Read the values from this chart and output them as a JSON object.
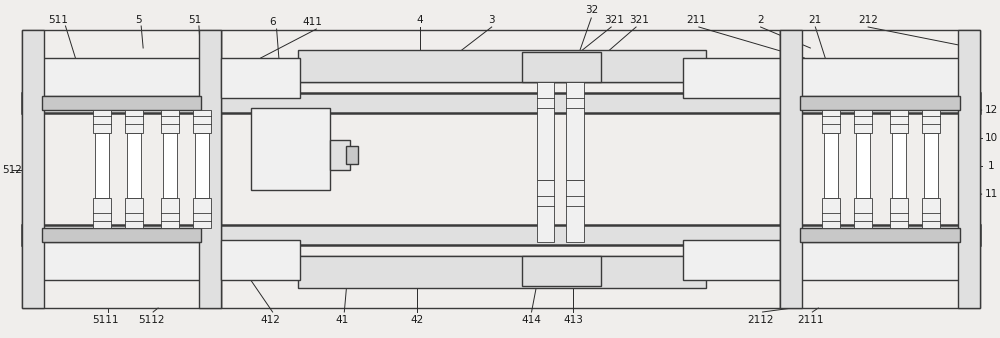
{
  "bg_color": "#f0eeec",
  "line_color": "#3a3a3a",
  "fig_width": 10.0,
  "fig_height": 3.38,
  "lw_main": 1.0,
  "lw_thin": 0.6,
  "lw_thick": 1.8,
  "fc_white": "#ffffff",
  "fc_light": "#f0f0f0",
  "fc_mid": "#e0e0e0",
  "fc_dark": "#c8c8c8"
}
